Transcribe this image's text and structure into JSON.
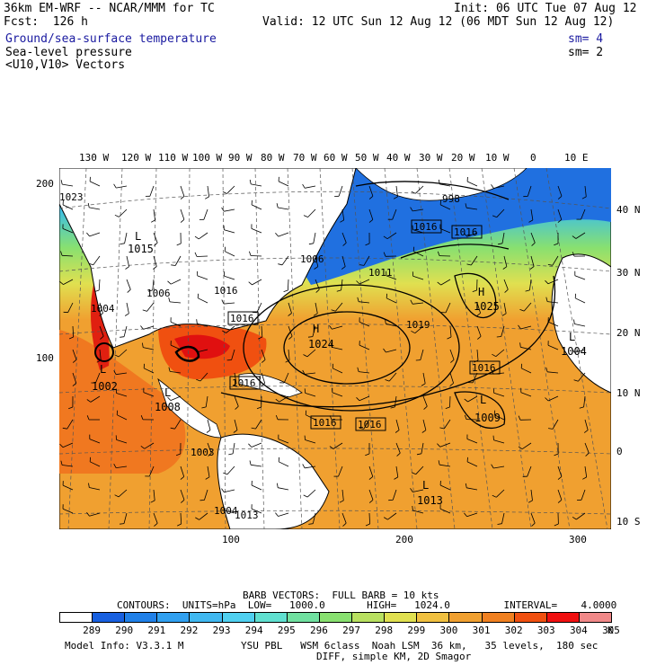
{
  "header": {
    "model_title": "36km EM-WRF -- NCAR/MMM for TC",
    "init": "Init: 06 UTC Tue 07 Aug 12",
    "forecast": "Fcst:  126 h",
    "valid": "Valid: 12 UTC Sun 12 Aug 12 (06 MDT Sun 12 Aug 12)",
    "fields": [
      {
        "label": "Ground/sea-surface temperature",
        "sm": "sm= 4"
      },
      {
        "label": "Sea-level pressure",
        "sm": "sm= 2"
      },
      {
        "label": "<U10,V10> Vectors",
        "sm": ""
      }
    ]
  },
  "axes": {
    "top_lon": [
      "130 W",
      "120 W",
      "110 W",
      "100 W",
      "90 W",
      "80 W",
      "70 W",
      "60 W",
      "50 W",
      "40 W",
      "30 W",
      "20 W",
      "10 W",
      "0",
      "10 E"
    ],
    "right_lat": [
      "40 N",
      "30 N",
      "20 N",
      "10 N",
      "0",
      "10 S"
    ],
    "left_grid": [
      "200",
      "100"
    ],
    "bottom_grid": [
      "100",
      "200",
      "300"
    ]
  },
  "map": {
    "highs": [
      {
        "letter": "H",
        "value": "1024"
      },
      {
        "letter": "H",
        "value": "1025"
      }
    ],
    "lows": [
      {
        "letter": "L",
        "value": "1002"
      },
      {
        "letter": "L",
        "value": "1008"
      },
      {
        "letter": "L",
        "value": "1004"
      },
      {
        "letter": "L",
        "value": "1009"
      },
      {
        "letter": "L",
        "value": "1013"
      },
      {
        "letter": "L",
        "value": "1015"
      }
    ],
    "contour_labels": [
      "1016",
      "1016",
      "1016",
      "1016",
      "1016",
      "1016",
      "1016",
      "1016",
      "1019",
      "1011",
      "1006",
      "998",
      "1013",
      "1004",
      "1006",
      "1003",
      "1004",
      "1023"
    ]
  },
  "footer": {
    "barb_line": "BARB VECTORS:  FULL BARB = 10 kts",
    "contours_line": "CONTOURS:  UNITS=hPa  LOW=   1000.0       HIGH=   1024.0         INTERVAL=    4.0000",
    "colorbar": {
      "labels": [
        "289",
        "290",
        "291",
        "292",
        "293",
        "294",
        "295",
        "296",
        "297",
        "298",
        "299",
        "300",
        "301",
        "302",
        "303",
        "304",
        "305"
      ],
      "unit": "K",
      "colors": [
        "#ffffff",
        "#1860e0",
        "#2080e8",
        "#30a0f0",
        "#40b8f0",
        "#50d0f0",
        "#60e0d0",
        "#70e0a0",
        "#88e070",
        "#b8e060",
        "#e0e050",
        "#f0c040",
        "#f0a030",
        "#f08020",
        "#f05010",
        "#f01010",
        "#f08888"
      ]
    },
    "model_info": "Model Info: V3.3.1 M",
    "physics": "YSU PBL   WSM 6class  Noah LSM  36 km,   35 levels,  180 sec",
    "diff": "DIFF, simple KM, 2D Smagor"
  }
}
